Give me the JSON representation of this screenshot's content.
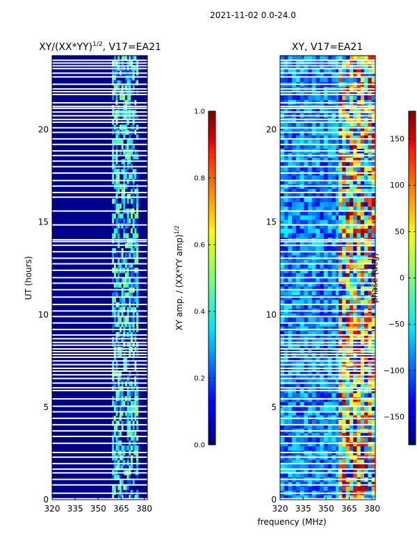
{
  "figure": {
    "suptitle": "2021-11-02 0.0-24.0",
    "xlabel": "frequency (MHz)"
  },
  "chart_data": [
    {
      "type": "heatmap",
      "title": "XY/(XX*YY)",
      "title_exponent": "1/2",
      "title_suffix": ", V17=EA21",
      "xlabel": "frequency (MHz)",
      "ylabel": "UT (hours)",
      "x_ticks": [
        "320",
        "335",
        "350",
        "365",
        "380"
      ],
      "x_tick_values": [
        320,
        335,
        350,
        365,
        380
      ],
      "y_ticks": [
        "0",
        "5",
        "10",
        "15",
        "20"
      ],
      "y_tick_values": [
        0,
        5,
        10,
        15,
        20
      ],
      "xlim": [
        320,
        382
      ],
      "ylim": [
        0,
        24
      ],
      "colorbar": {
        "label": "XY amp. / (XX*YY amp)",
        "label_exponent": "1/2",
        "ticks": [
          "0.0",
          "0.2",
          "0.4",
          "0.6",
          "0.8",
          "1.0"
        ],
        "tick_values": [
          0.0,
          0.2,
          0.4,
          0.6,
          0.8,
          1.0
        ],
        "range": [
          0.0,
          1.0
        ],
        "colormap": "jet"
      },
      "features": {
        "background_value": 0.02,
        "active_band_mhz": [
          359,
          376
        ],
        "active_band_value_range": [
          0.15,
          0.55
        ]
      }
    },
    {
      "type": "heatmap",
      "title": "XY, V17=EA21",
      "xlabel": "frequency (MHz)",
      "ylabel": "",
      "x_ticks": [
        "320",
        "335",
        "350",
        "365",
        "380"
      ],
      "x_tick_values": [
        320,
        335,
        350,
        365,
        380
      ],
      "y_ticks": [
        "0",
        "5",
        "10",
        "15",
        "20"
      ],
      "y_tick_values": [
        0,
        5,
        10,
        15,
        20
      ],
      "xlim": [
        320,
        382
      ],
      "ylim": [
        0,
        24
      ],
      "colorbar": {
        "label": "phase (deg)",
        "ticks": [
          "150",
          "100",
          "50",
          "0",
          "−50",
          "−100",
          "−150"
        ],
        "tick_values": [
          150,
          100,
          50,
          0,
          -50,
          -100,
          -150
        ],
        "range": [
          -180,
          180
        ],
        "colormap": "jet"
      },
      "features": {
        "background_value": -90,
        "active_band_mhz": [
          358,
          382
        ],
        "active_band_value_range": [
          -150,
          180
        ]
      }
    }
  ],
  "gaps_ut_hours": [
    0.05,
    0.35,
    0.8,
    1.1,
    1.45,
    1.65,
    1.95,
    2.3,
    2.55,
    3.05,
    3.42,
    3.72,
    4.05,
    4.4,
    4.75,
    5.05,
    5.45,
    5.9,
    6.05,
    6.3,
    6.55,
    6.75,
    6.95,
    7.1,
    7.3,
    7.5,
    7.7,
    7.85,
    8.0,
    8.15,
    8.35,
    8.5,
    8.7,
    8.9,
    9.2,
    9.55,
    9.9,
    10.2,
    10.55,
    10.95,
    11.35,
    11.7,
    12.0,
    12.4,
    12.75,
    13.05,
    13.4,
    13.75,
    13.95,
    14.05,
    14.85,
    15.6,
    16.35,
    16.6,
    16.95,
    17.25,
    17.65,
    18.0,
    18.3,
    18.6,
    18.85,
    19.2,
    19.5,
    19.85,
    20.1,
    20.4,
    20.55,
    20.75,
    20.95,
    21.15,
    21.25,
    21.45,
    21.9,
    22.05,
    22.2,
    22.45,
    22.85,
    23.05,
    23.3,
    23.45,
    23.6,
    23.75
  ]
}
